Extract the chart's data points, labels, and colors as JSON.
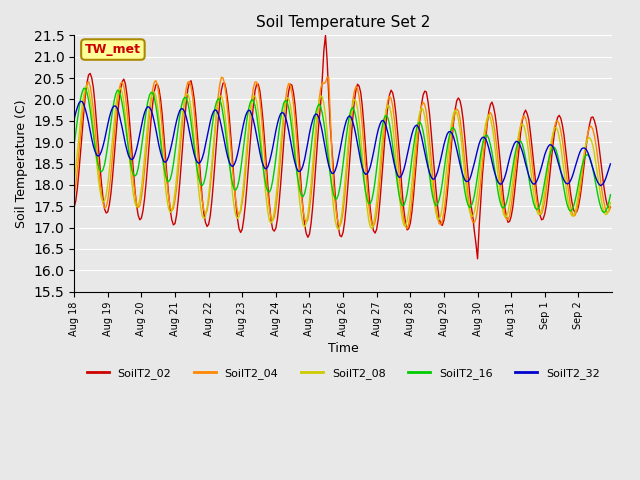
{
  "title": "Soil Temperature Set 2",
  "xlabel": "Time",
  "ylabel": "Soil Temperature (C)",
  "ylim": [
    15.5,
    21.5
  ],
  "yticks": [
    15.5,
    16.0,
    16.5,
    17.0,
    17.5,
    18.0,
    18.5,
    19.0,
    19.5,
    20.0,
    20.5,
    21.0,
    21.5
  ],
  "xtick_labels": [
    "Aug 18",
    "Aug 19",
    "Aug 20",
    "Aug 21",
    "Aug 22",
    "Aug 23",
    "Aug 24",
    "Aug 25",
    "Aug 26",
    "Aug 27",
    "Aug 28",
    "Aug 29",
    "Aug 30",
    "Aug 31",
    "Sep 1",
    "Sep 2"
  ],
  "colors": {
    "SoilT2_02": "#cc0000",
    "SoilT2_04": "#ff8800",
    "SoilT2_08": "#cccc00",
    "SoilT2_16": "#00cc00",
    "SoilT2_32": "#0000cc"
  },
  "background_color": "#e8e8e8",
  "plot_bg_color": "#e8e8e8",
  "annotation_box_color": "#ffff99",
  "annotation_text_color": "#cc0000",
  "annotation_text": "TW_met",
  "legend_labels": [
    "SoilT2_02",
    "SoilT2_04",
    "SoilT2_08",
    "SoilT2_16",
    "SoilT2_32"
  ],
  "n_points": 336,
  "days": 16
}
